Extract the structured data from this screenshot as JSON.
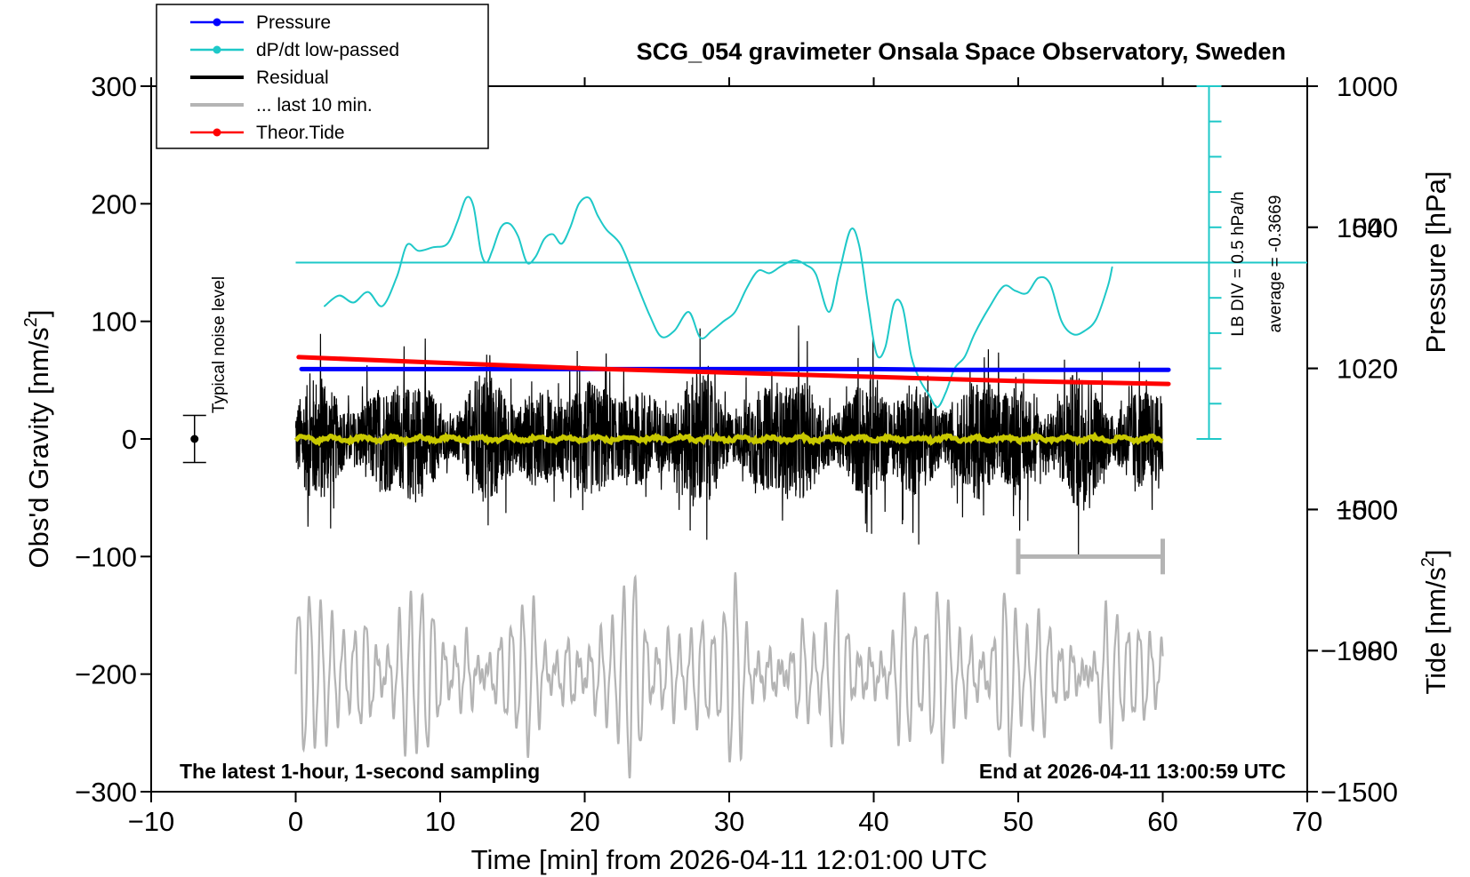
{
  "chart_data": {
    "type": "line",
    "title": "SCG_054 gravimeter Onsala Space Observatory, Sweden",
    "xlabel": "Time [min] from 2026-04-11 12:01:00 UTC",
    "ylabel": "Obs'd Gravity [nm/s",
    "ylabel_sup": "2",
    "ylabel_close": "]",
    "xlim": [
      -10,
      70
    ],
    "ylim": [
      -300,
      300
    ],
    "x_ticks": [
      -10,
      0,
      10,
      20,
      30,
      40,
      50,
      60,
      70
    ],
    "x_tick_labels": [
      "−10",
      "0",
      "10",
      "20",
      "30",
      "40",
      "50",
      "60",
      "70"
    ],
    "y_ticks": [
      300,
      200,
      100,
      0,
      -100,
      -200,
      -300
    ],
    "y_tick_labels": [
      "300",
      "200",
      "100",
      "0",
      "−100",
      "−200",
      "−300"
    ],
    "pressure_axis": {
      "label": "Pressure [hPa]",
      "ticks": [
        1040,
        1020,
        1000,
        980
      ],
      "tick_labels": [
        "1040",
        "1020",
        "1000",
        "980"
      ],
      "range": [
        960,
        1060
      ]
    },
    "tide_axis": {
      "label": "Tide [nm/s",
      "label_sup": "2",
      "label_close": "]",
      "ticks": [
        1000,
        500,
        0,
        -500,
        -1000,
        -1500
      ],
      "tick_labels": [
        "1000",
        "500",
        "0",
        "−500",
        "−1000",
        "−1500"
      ],
      "range": [
        -1500,
        1000
      ]
    },
    "legend": [
      {
        "label": "Pressure",
        "color": "#0000ff",
        "marker": true
      },
      {
        "label": "dP/dt low-passed",
        "color": "#1ec8c8",
        "marker": true
      },
      {
        "label": "Residual",
        "color": "#000000",
        "marker": false
      },
      {
        "label": "... last 10 min.",
        "color": "#b4b4b4",
        "marker": false
      },
      {
        "label": "Theor.Tide",
        "color": "#ff0000",
        "marker": true
      }
    ],
    "annotations": {
      "noise_label": "Typical noise level",
      "noise_level": 20,
      "lb_div": "LB DIV = 0.5 hPa/h",
      "average": "average = -0.3669",
      "footer_left": "The latest 1-hour, 1-second sampling",
      "footer_right": "End at 2026-04-11 13:00:59 UTC"
    },
    "series": [
      {
        "name": "Pressure",
        "axis": "pressure",
        "color": "#0000ff",
        "x": [
          0.4,
          20,
          40,
          45.5,
          60.4
        ],
        "values": [
          1019.9,
          1019.9,
          1019.9,
          1019.8,
          1019.8
        ]
      },
      {
        "name": "dP/dt low-passed",
        "axis": "gravity",
        "color": "#1ec8c8",
        "x": [
          2.0,
          3.0,
          4.0,
          5.0,
          6.0,
          7.0,
          7.7,
          8.5,
          9.5,
          10.5,
          11.2,
          11.8,
          12.3,
          12.8,
          13.2,
          13.6,
          14.2,
          14.8,
          15.4,
          16.0,
          16.6,
          17.2,
          17.8,
          18.4,
          19.0,
          19.6,
          20.3,
          20.9,
          21.5,
          22.5,
          23.5,
          24.5,
          25.3,
          26.2,
          27.2,
          28.0,
          28.8,
          29.6,
          30.4,
          31.2,
          32.0,
          32.8,
          33.6,
          34.5,
          35.3,
          36.0,
          36.9,
          37.6,
          38.4,
          39.0,
          39.6,
          40.2,
          40.8,
          41.4,
          42.0,
          42.6,
          43.2,
          43.8,
          44.4,
          45.0,
          45.6,
          46.3,
          47.0,
          48.0,
          49.0,
          49.8,
          50.6,
          51.4,
          52.2,
          53.0,
          53.8,
          54.6,
          55.4,
          56.2,
          56.5
        ],
        "values": [
          113,
          122,
          116,
          125,
          113,
          138,
          165,
          160,
          163,
          166,
          185,
          205,
          198,
          160,
          150,
          160,
          180,
          183,
          172,
          150,
          155,
          170,
          174,
          166,
          180,
          200,
          205,
          190,
          178,
          165,
          135,
          105,
          87,
          92,
          108,
          86,
          92,
          100,
          108,
          128,
          143,
          141,
          147,
          152,
          148,
          140,
          108,
          141,
          178,
          164,
          115,
          72,
          78,
          115,
          112,
          70,
          50,
          38,
          27,
          40,
          60,
          70,
          90,
          112,
          130,
          126,
          124,
          137,
          132,
          100,
          89,
          92,
          102,
          130,
          146
        ]
      },
      {
        "name": "Theor.Tide",
        "axis": "tide",
        "color": "#ff0000",
        "x": [
          0.2,
          10,
          20,
          30,
          40,
          50,
          60.4
        ],
        "values": [
          40,
          20,
          0,
          -15,
          -30,
          -45,
          -55
        ]
      }
    ]
  }
}
